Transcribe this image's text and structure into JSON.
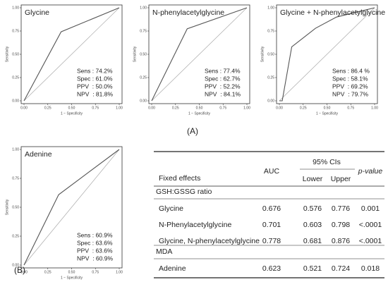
{
  "chart_data": [
    {
      "type": "line",
      "title": "Glycine",
      "xlabel": "1 − Specificity",
      "ylabel": "Sensitivity",
      "x": [
        0,
        0.39,
        1
      ],
      "series": [
        {
          "color": "#555555",
          "values": [
            0,
            0.742,
            1
          ]
        }
      ],
      "xlim": [
        0,
        1
      ],
      "ylim": [
        0,
        1
      ],
      "xticks": [
        {
          "value": 0,
          "label": "0.00"
        },
        {
          "value": 0.25,
          "label": "0.25"
        },
        {
          "value": 0.5,
          "label": "0.50"
        },
        {
          "value": 0.75,
          "label": "0.75"
        },
        {
          "value": 1,
          "label": "1.00"
        }
      ],
      "yticks": [
        {
          "value": 0,
          "label": "0.00"
        },
        {
          "value": 0.25,
          "label": "0.25"
        },
        {
          "value": 0.5,
          "label": "0.50"
        },
        {
          "value": 0.75,
          "label": "0.75"
        },
        {
          "value": 1,
          "label": "1.00"
        }
      ],
      "annotations": [
        "Sens : 74.2%",
        "Spec : 61.0%",
        "PPV  : 50.0%",
        "NPV  : 81.8%"
      ]
    },
    {
      "type": "line",
      "title": "N-phenylacetylglycine",
      "xlabel": "1 − Specificity",
      "ylabel": "Sensitivity",
      "x": [
        0,
        0.373,
        1
      ],
      "series": [
        {
          "color": "#555555",
          "values": [
            0,
            0.774,
            1
          ]
        }
      ],
      "xlim": [
        0,
        1
      ],
      "ylim": [
        0,
        1
      ],
      "xticks": [
        {
          "value": 0,
          "label": "0.00"
        },
        {
          "value": 0.25,
          "label": "0.25"
        },
        {
          "value": 0.5,
          "label": "0.50"
        },
        {
          "value": 0.75,
          "label": "0.75"
        },
        {
          "value": 1,
          "label": "1.00"
        }
      ],
      "yticks": [
        {
          "value": 0,
          "label": "0.00"
        },
        {
          "value": 0.25,
          "label": "0.25"
        },
        {
          "value": 0.5,
          "label": "0.50"
        },
        {
          "value": 0.75,
          "label": "0.75"
        },
        {
          "value": 1,
          "label": "1.00"
        }
      ],
      "annotations": [
        "Sens : 77.4%",
        "Spec : 62.7%",
        "PPV  : 52.2%",
        "NPV  : 84.1%"
      ]
    },
    {
      "type": "line",
      "title": "Glycine + N-phenylacetylglycine",
      "xlabel": "1 − Specificity",
      "ylabel": "Sensitivity",
      "x": [
        0,
        0.03,
        0.13,
        0.38,
        0.6,
        1
      ],
      "series": [
        {
          "color": "#555555",
          "values": [
            0,
            0,
            0.58,
            0.78,
            0.9,
            1
          ]
        }
      ],
      "xlim": [
        0,
        1
      ],
      "ylim": [
        0,
        1
      ],
      "xticks": [
        {
          "value": 0,
          "label": "0.00"
        },
        {
          "value": 0.25,
          "label": "0.25"
        },
        {
          "value": 0.5,
          "label": "0.50"
        },
        {
          "value": 0.75,
          "label": "0.75"
        },
        {
          "value": 1,
          "label": "1.00"
        }
      ],
      "yticks": [
        {
          "value": 0,
          "label": "0.00"
        },
        {
          "value": 0.25,
          "label": "0.25"
        },
        {
          "value": 0.5,
          "label": "0.50"
        },
        {
          "value": 0.75,
          "label": "0.75"
        },
        {
          "value": 1,
          "label": "1.00"
        }
      ],
      "annotations": [
        "Sens : 86.4 %",
        "Spec : 58.1%",
        "PPV  : 69.2%",
        "NPV  : 79.7%"
      ]
    },
    {
      "type": "line",
      "title": "Adenine",
      "xlabel": "1 − Specificity",
      "ylabel": "Sensitivity",
      "x": [
        0,
        0.364,
        1
      ],
      "series": [
        {
          "color": "#555555",
          "values": [
            0,
            0.609,
            1
          ]
        }
      ],
      "xlim": [
        0,
        1
      ],
      "ylim": [
        0,
        1
      ],
      "xticks": [
        {
          "value": 0,
          "label": "0.00"
        },
        {
          "value": 0.25,
          "label": "0.25"
        },
        {
          "value": 0.5,
          "label": "0.50"
        },
        {
          "value": 0.75,
          "label": "0.75"
        },
        {
          "value": 1,
          "label": "1.00"
        }
      ],
      "yticks": [
        {
          "value": 0,
          "label": "0.00"
        },
        {
          "value": 0.25,
          "label": "0.25"
        },
        {
          "value": 0.5,
          "label": "0.50"
        },
        {
          "value": 0.75,
          "label": "0.75"
        },
        {
          "value": 1,
          "label": "1.00"
        }
      ],
      "annotations": [
        "Sens : 60.9%",
        "Spec : 63.6%",
        "PPV  : 63.6%",
        "NPV  : 60.9%"
      ]
    }
  ],
  "figure_labels": [
    "(A)",
    "(B)"
  ],
  "table": {
    "header": {
      "fixed_effects": "Fixed effects",
      "auc": "AUC",
      "ci": "95% CIs",
      "lower": "Lower",
      "upper": "Upper",
      "p": "p-value"
    },
    "groups": [
      {
        "name": "GSH:GSSG ratio",
        "rows": [
          [
            "Glycine",
            0.676,
            0.576,
            0.776,
            0.001
          ],
          [
            "N-Phenylacetylglycine",
            0.701,
            0.603,
            0.798,
            "<.0001"
          ],
          [
            "Glycine, N-phenylacetylglycine",
            0.778,
            0.681,
            0.876,
            "<.0001"
          ]
        ]
      },
      {
        "name": "MDA",
        "rows": [
          [
            "Adenine",
            0.623,
            0.521,
            0.724,
            0.018
          ]
        ]
      }
    ]
  }
}
